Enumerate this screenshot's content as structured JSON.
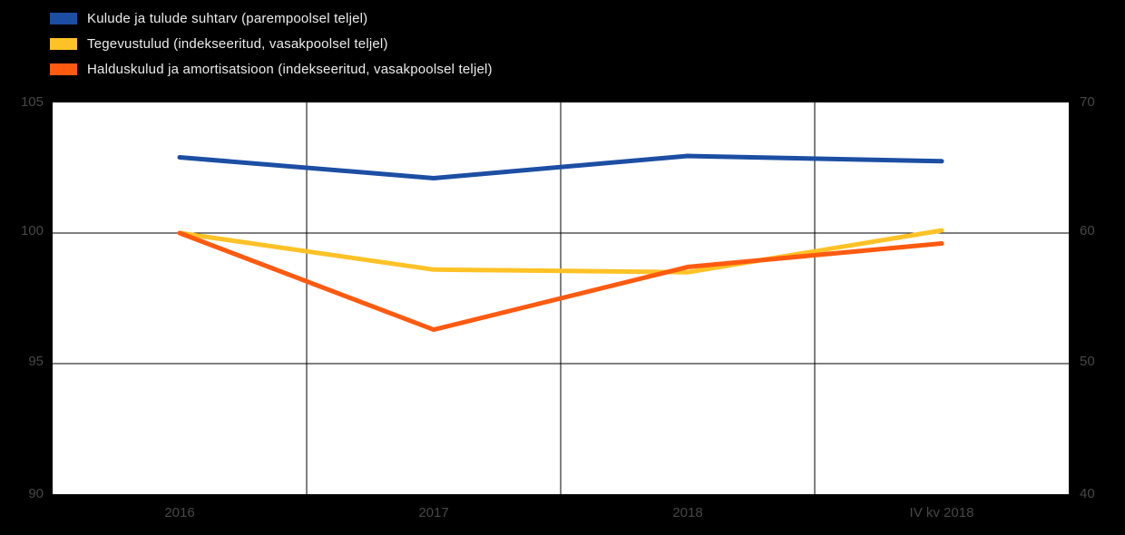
{
  "chart_data": {
    "type": "line",
    "title": "",
    "x": [
      "2016",
      "2017",
      "2018",
      "IV kv 2018"
    ],
    "series": [
      {
        "name": "Kulude ja tulude suhtarv (parempoolsel teljel)",
        "color": "#1c4ea3",
        "axis": "right",
        "values": [
          65.8,
          64.2,
          65.9,
          65.5
        ]
      },
      {
        "name": "Tegevustulud (indekseeritud, vasakpoolsel teljel)",
        "color": "#ffc226",
        "axis": "left",
        "values": [
          100,
          98.6,
          98.5,
          100.1
        ]
      },
      {
        "name": "Halduskulud ja amortisatsioon (indekseeritud, vasakpoolsel teljel)",
        "color": "#ff5a10",
        "axis": "left",
        "values": [
          100,
          96.3,
          98.7,
          99.6
        ]
      }
    ],
    "left_axis": {
      "range": [
        90,
        105
      ],
      "ticks": [
        105,
        100,
        95,
        90
      ]
    },
    "right_axis": {
      "range": [
        40,
        70
      ],
      "ticks": [
        70,
        60,
        50,
        40
      ]
    },
    "grid": true,
    "legend_position": "top-left",
    "plot_background": "#ffffff",
    "page_background": "#000000"
  }
}
